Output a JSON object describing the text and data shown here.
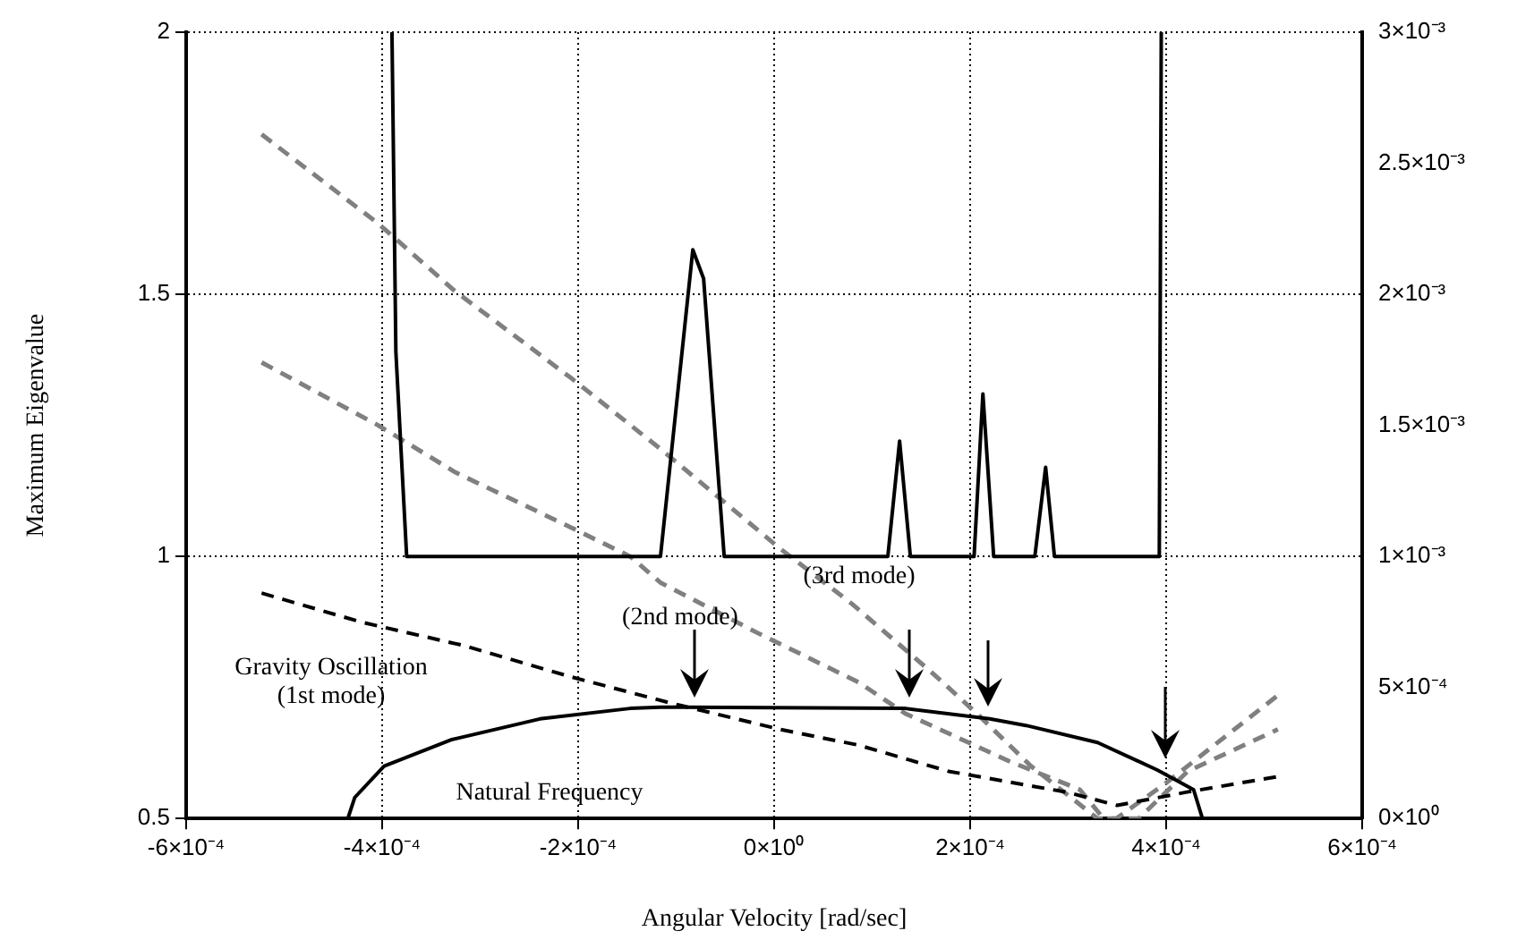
{
  "chart_data": {
    "type": "line",
    "xlabel": "Angular Velocity [rad/sec]",
    "ylabel": "Maximum Eigenvalue",
    "xlim": [
      -0.0006,
      0.0006
    ],
    "xticks": [
      {
        "value": -0.0006,
        "label": "-6×10⁻⁴"
      },
      {
        "value": -0.0004,
        "label": "-4×10⁻⁴"
      },
      {
        "value": -0.0002,
        "label": "-2×10⁻⁴"
      },
      {
        "value": 0,
        "label": "0×10⁰"
      },
      {
        "value": 0.0002,
        "label": "2×10⁻⁴"
      },
      {
        "value": 0.0004,
        "label": "4×10⁻⁴"
      },
      {
        "value": 0.0006,
        "label": "6×10⁻⁴"
      }
    ],
    "ylim": [
      0.5,
      2
    ],
    "yticks": [
      0.5,
      1,
      1.5,
      2
    ],
    "y2lim": [
      0,
      0.003
    ],
    "y2ticks": [
      {
        "value": 0,
        "label": "0×10⁰"
      },
      {
        "value": 0.0005,
        "label": "5×10⁻⁴"
      },
      {
        "value": 0.001,
        "label": "1×10⁻³"
      },
      {
        "value": 0.0015,
        "label": "1.5×10⁻³"
      },
      {
        "value": 0.002,
        "label": "2×10⁻³"
      },
      {
        "value": 0.0025,
        "label": "2.5×10⁻³"
      },
      {
        "value": 0.003,
        "label": "3×10⁻³"
      }
    ],
    "grid": true,
    "legend": false,
    "marker": "none",
    "annotations": [
      "Gravity Oscillation\n(1st mode)",
      "(2nd mode)",
      "(3rd mode)",
      "Natural Frequency"
    ],
    "series": [
      {
        "color": "#000000",
        "line_style": "solid",
        "x": [
          -0.00039,
          -0.000386,
          -0.000375,
          -0.000116,
          -8.3e-05,
          -7.2e-05,
          -5.1e-05,
          0.000116,
          0.000128,
          0.000139,
          0.000204,
          0.000213,
          0.000224,
          0.000266,
          0.000277,
          0.000286,
          0.000393,
          0.000395
        ],
        "values": [
          2,
          1.39,
          1,
          1,
          1.585,
          1.53,
          1,
          1,
          1.22,
          1,
          1,
          1.31,
          1,
          1,
          1.17,
          1,
          1,
          2
        ]
      },
      {
        "color": "#000000",
        "line_style": "solid",
        "axis": "y2",
        "x": [
          -0.000435,
          -0.000428,
          -0.000398,
          -0.00033,
          -0.000239,
          -0.000147,
          -0.000116,
          0.000134,
          0.00022,
          0.000257,
          0.00033,
          0.000391,
          0.000428,
          0.000437
        ],
        "values": [
          0,
          8e-05,
          0.0002,
          0.0003,
          0.00038,
          0.00042,
          0.000425,
          0.00042,
          0.00038,
          0.000355,
          0.00029,
          0.000185,
          0.00011,
          0
        ]
      },
      {
        "color": "#000000",
        "line_style": "dashed",
        "axis": "y2",
        "x": [
          -0.000523,
          -0.000422,
          -0.000317,
          -0.000207,
          -0.000105,
          6e-06,
          8.6e-05,
          0.000178,
          0.000299,
          0.00035,
          0.00042,
          0.000514
        ],
        "values": [
          0.00086,
          0.00075,
          0.00066,
          0.00054,
          0.00044,
          0.00034,
          0.00028,
          0.00018,
          0.0001,
          5e-05,
          0.0001,
          0.00016
        ]
      },
      {
        "color": "#808080",
        "line_style": "dashed",
        "axis": "y2",
        "x": [
          -0.000523,
          -0.000404,
          -0.000325,
          -0.000207,
          -0.000116,
          6e-06,
          7.9e-05,
          0.00016,
          0.000207,
          0.000262,
          0.00033,
          0.000349,
          0.000398,
          0.000514
        ],
        "values": [
          0.00261,
          0.00227,
          0.00201,
          0.00168,
          0.00141,
          0.00103,
          0.00082,
          0.00056,
          0.0004,
          0.0002,
          0,
          0,
          0.00013,
          0.00047
        ]
      },
      {
        "color": "#808080",
        "line_style": "dashed",
        "axis": "y2",
        "x": [
          -0.000523,
          -0.000404,
          -0.000325,
          -0.000207,
          -0.000147,
          -0.000116,
          -1.8e-05,
          8.6e-05,
          0.000134,
          0.000239,
          0.000312,
          0.000336,
          0.000372,
          0.000422,
          0.000514
        ],
        "values": [
          0.00174,
          0.0015,
          0.00132,
          0.00111,
          0.001,
          0.0009,
          0.00071,
          0.00052,
          0.0004,
          0.00022,
          0.00011,
          0,
          0,
          0.00018,
          0.00034
        ]
      }
    ]
  }
}
